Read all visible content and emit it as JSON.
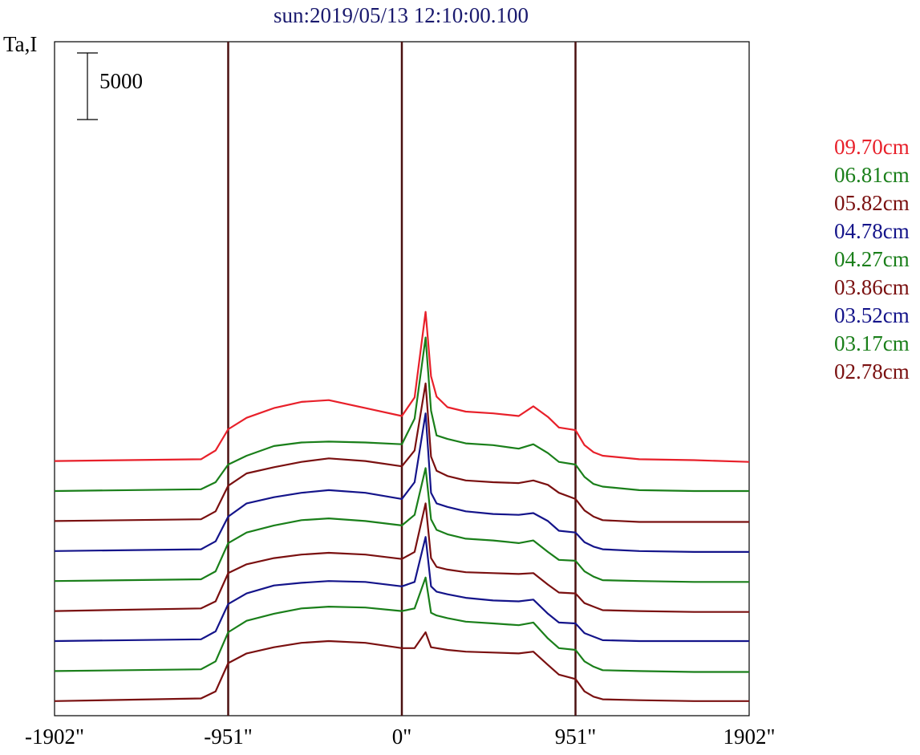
{
  "title": "sun:2019/05/13 12:10:00.100",
  "chart_data": {
    "type": "line",
    "ylabel": "Ta,I",
    "x_ticks": [
      "-1902\"",
      "-951\"",
      "0\"",
      "951\"",
      "1902\""
    ],
    "x_tick_values": [
      -1902,
      -951,
      0,
      951,
      1902
    ],
    "xlim": [
      -1902,
      1902
    ],
    "vertical_lines": [
      -951,
      0,
      951
    ],
    "scale_bar_label": "5000",
    "grid": false,
    "legend_position": "right",
    "stacked_offset": 3400,
    "x": [
      -1902,
      -1100,
      -1020,
      -951,
      -850,
      -700,
      -550,
      -400,
      -200,
      0,
      70,
      130,
      160,
      190,
      250,
      350,
      500,
      640,
      720,
      800,
      860,
      951,
      1000,
      1050,
      1100,
      1300,
      1600,
      1902
    ],
    "series": [
      {
        "name": "09.70cm",
        "color": "#e8202a",
        "values": [
          200,
          400,
          1400,
          3800,
          5100,
          6200,
          6900,
          7100,
          6200,
          5300,
          7400,
          17100,
          9800,
          7500,
          6300,
          5800,
          5600,
          5300,
          6400,
          5200,
          4000,
          3700,
          2000,
          1200,
          800,
          400,
          300,
          100
        ]
      },
      {
        "name": "06.81cm",
        "color": "#1a7f1a",
        "values": [
          200,
          400,
          1200,
          3200,
          4200,
          5300,
          5700,
          5800,
          5700,
          5500,
          8400,
          17600,
          9300,
          6500,
          6100,
          5600,
          5400,
          5000,
          5500,
          4500,
          3500,
          3200,
          1800,
          1000,
          700,
          300,
          200,
          200
        ]
      },
      {
        "name": "05.82cm",
        "color": "#7a1010",
        "values": [
          200,
          400,
          1300,
          4200,
          5600,
          6300,
          6900,
          7300,
          7000,
          6400,
          8200,
          15800,
          7500,
          5900,
          5300,
          4800,
          4600,
          4500,
          4800,
          4300,
          3400,
          2700,
          1400,
          700,
          300,
          100,
          100,
          100
        ]
      },
      {
        "name": "04.78cm",
        "color": "#14148a",
        "values": [
          200,
          400,
          1300,
          4100,
          5600,
          6300,
          6800,
          7100,
          6800,
          6100,
          8000,
          15800,
          6800,
          5600,
          5200,
          4700,
          4400,
          4300,
          4500,
          3600,
          2500,
          2300,
          1200,
          700,
          400,
          200,
          100,
          100
        ]
      },
      {
        "name": "04.27cm",
        "color": "#1a7f1a",
        "values": [
          200,
          400,
          1300,
          4500,
          5700,
          6500,
          7100,
          7300,
          7000,
          6500,
          7700,
          13000,
          7200,
          6000,
          5500,
          5000,
          4800,
          4500,
          4800,
          3500,
          2600,
          2500,
          1300,
          700,
          300,
          200,
          100,
          100
        ]
      },
      {
        "name": "03.86cm",
        "color": "#7a1010",
        "values": [
          200,
          500,
          1300,
          4500,
          5500,
          6200,
          6600,
          6800,
          6600,
          6100,
          6900,
          12400,
          6200,
          5200,
          4900,
          4600,
          4500,
          4400,
          4500,
          3200,
          2300,
          2200,
          1100,
          700,
          300,
          200,
          100,
          100
        ]
      },
      {
        "name": "03.52cm",
        "color": "#14148a",
        "values": [
          200,
          400,
          1300,
          4400,
          5600,
          6500,
          6800,
          7000,
          6900,
          6400,
          6900,
          12000,
          6400,
          5800,
          5500,
          5100,
          4800,
          4700,
          4900,
          3300,
          2300,
          2200,
          1100,
          700,
          300,
          200,
          200,
          200
        ]
      },
      {
        "name": "03.17cm",
        "color": "#1a7f1a",
        "values": [
          200,
          400,
          1300,
          4600,
          5900,
          6700,
          7300,
          7500,
          7400,
          7000,
          7300,
          10800,
          6800,
          6500,
          6200,
          5800,
          5600,
          5400,
          5700,
          3900,
          2800,
          2600,
          1300,
          700,
          300,
          200,
          100,
          100
        ]
      },
      {
        "name": "02.78cm",
        "color": "#7a1010",
        "values": [
          200,
          500,
          1300,
          4500,
          5600,
          6300,
          6800,
          7000,
          6800,
          6200,
          6200,
          8000,
          6300,
          6200,
          6000,
          5800,
          5700,
          5600,
          5800,
          4300,
          3200,
          2700,
          1300,
          700,
          400,
          300,
          200,
          200
        ]
      }
    ]
  }
}
